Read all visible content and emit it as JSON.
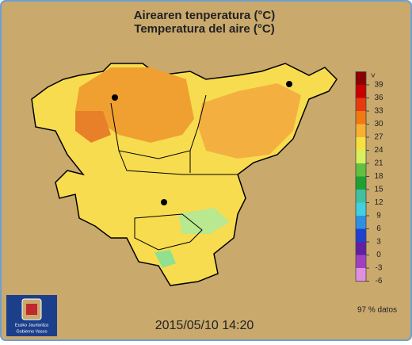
{
  "header": {
    "title_line1": "Airearen tenperatura (°C)",
    "title_line2": "Temperatura del aire (°C)"
  },
  "legend": {
    "top_label": ">",
    "ticks": [
      39,
      36,
      33,
      30,
      27,
      24,
      21,
      18,
      15,
      12,
      9,
      6,
      3,
      0,
      -3,
      -6
    ],
    "colors": [
      "#8b0000",
      "#c80000",
      "#e83a10",
      "#f07a10",
      "#f8b030",
      "#f8e040",
      "#d8f060",
      "#60c040",
      "#20a030",
      "#40c0a0",
      "#40d0e0",
      "#3090e0",
      "#2040d0",
      "#6020a0",
      "#a040c0",
      "#e090e0"
    ]
  },
  "coverage": "97 % datos",
  "timestamp": "2015/05/10 14:20",
  "logo": {
    "line1": "Eusko Jaurlaritza",
    "line2": "Gobierno Vasco"
  }
}
